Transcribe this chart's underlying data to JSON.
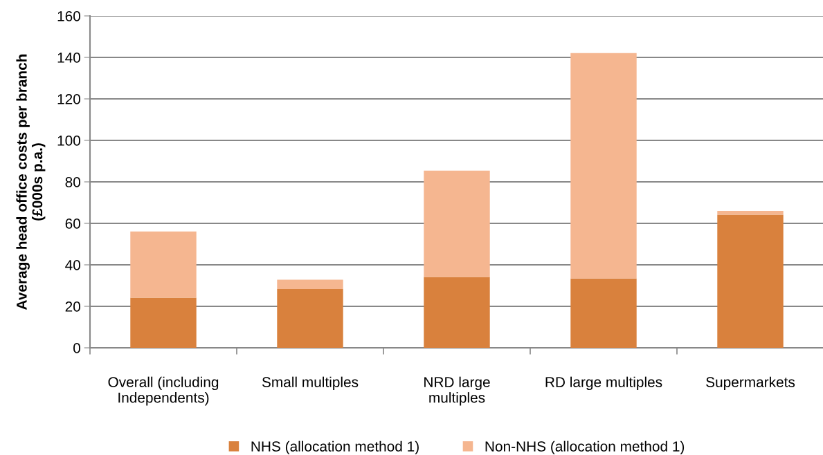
{
  "chart_data": {
    "type": "bar",
    "stacked": true,
    "ylabel": "Average head office costs per branch\n(£000s p.a.)",
    "categories": [
      "Overall (including\nIndependents)",
      "Small multiples",
      "NRD large\nmultiples",
      "RD large multiples",
      "Supermarkets"
    ],
    "series": [
      {
        "name": "NHS (allocation method 1)",
        "color": "#d9813d",
        "values": [
          24.2,
          28.3,
          34.2,
          33.4,
          64.2
        ]
      },
      {
        "name": "Non-NHS (allocation method 1)",
        "color": "#f5b690",
        "values": [
          31.9,
          4.5,
          51.2,
          108.7,
          1.8
        ]
      }
    ],
    "ylim": [
      0,
      160
    ],
    "yticks": [
      0,
      20,
      40,
      60,
      80,
      100,
      120,
      140,
      160
    ],
    "grid": "y",
    "legend": "bottom"
  }
}
